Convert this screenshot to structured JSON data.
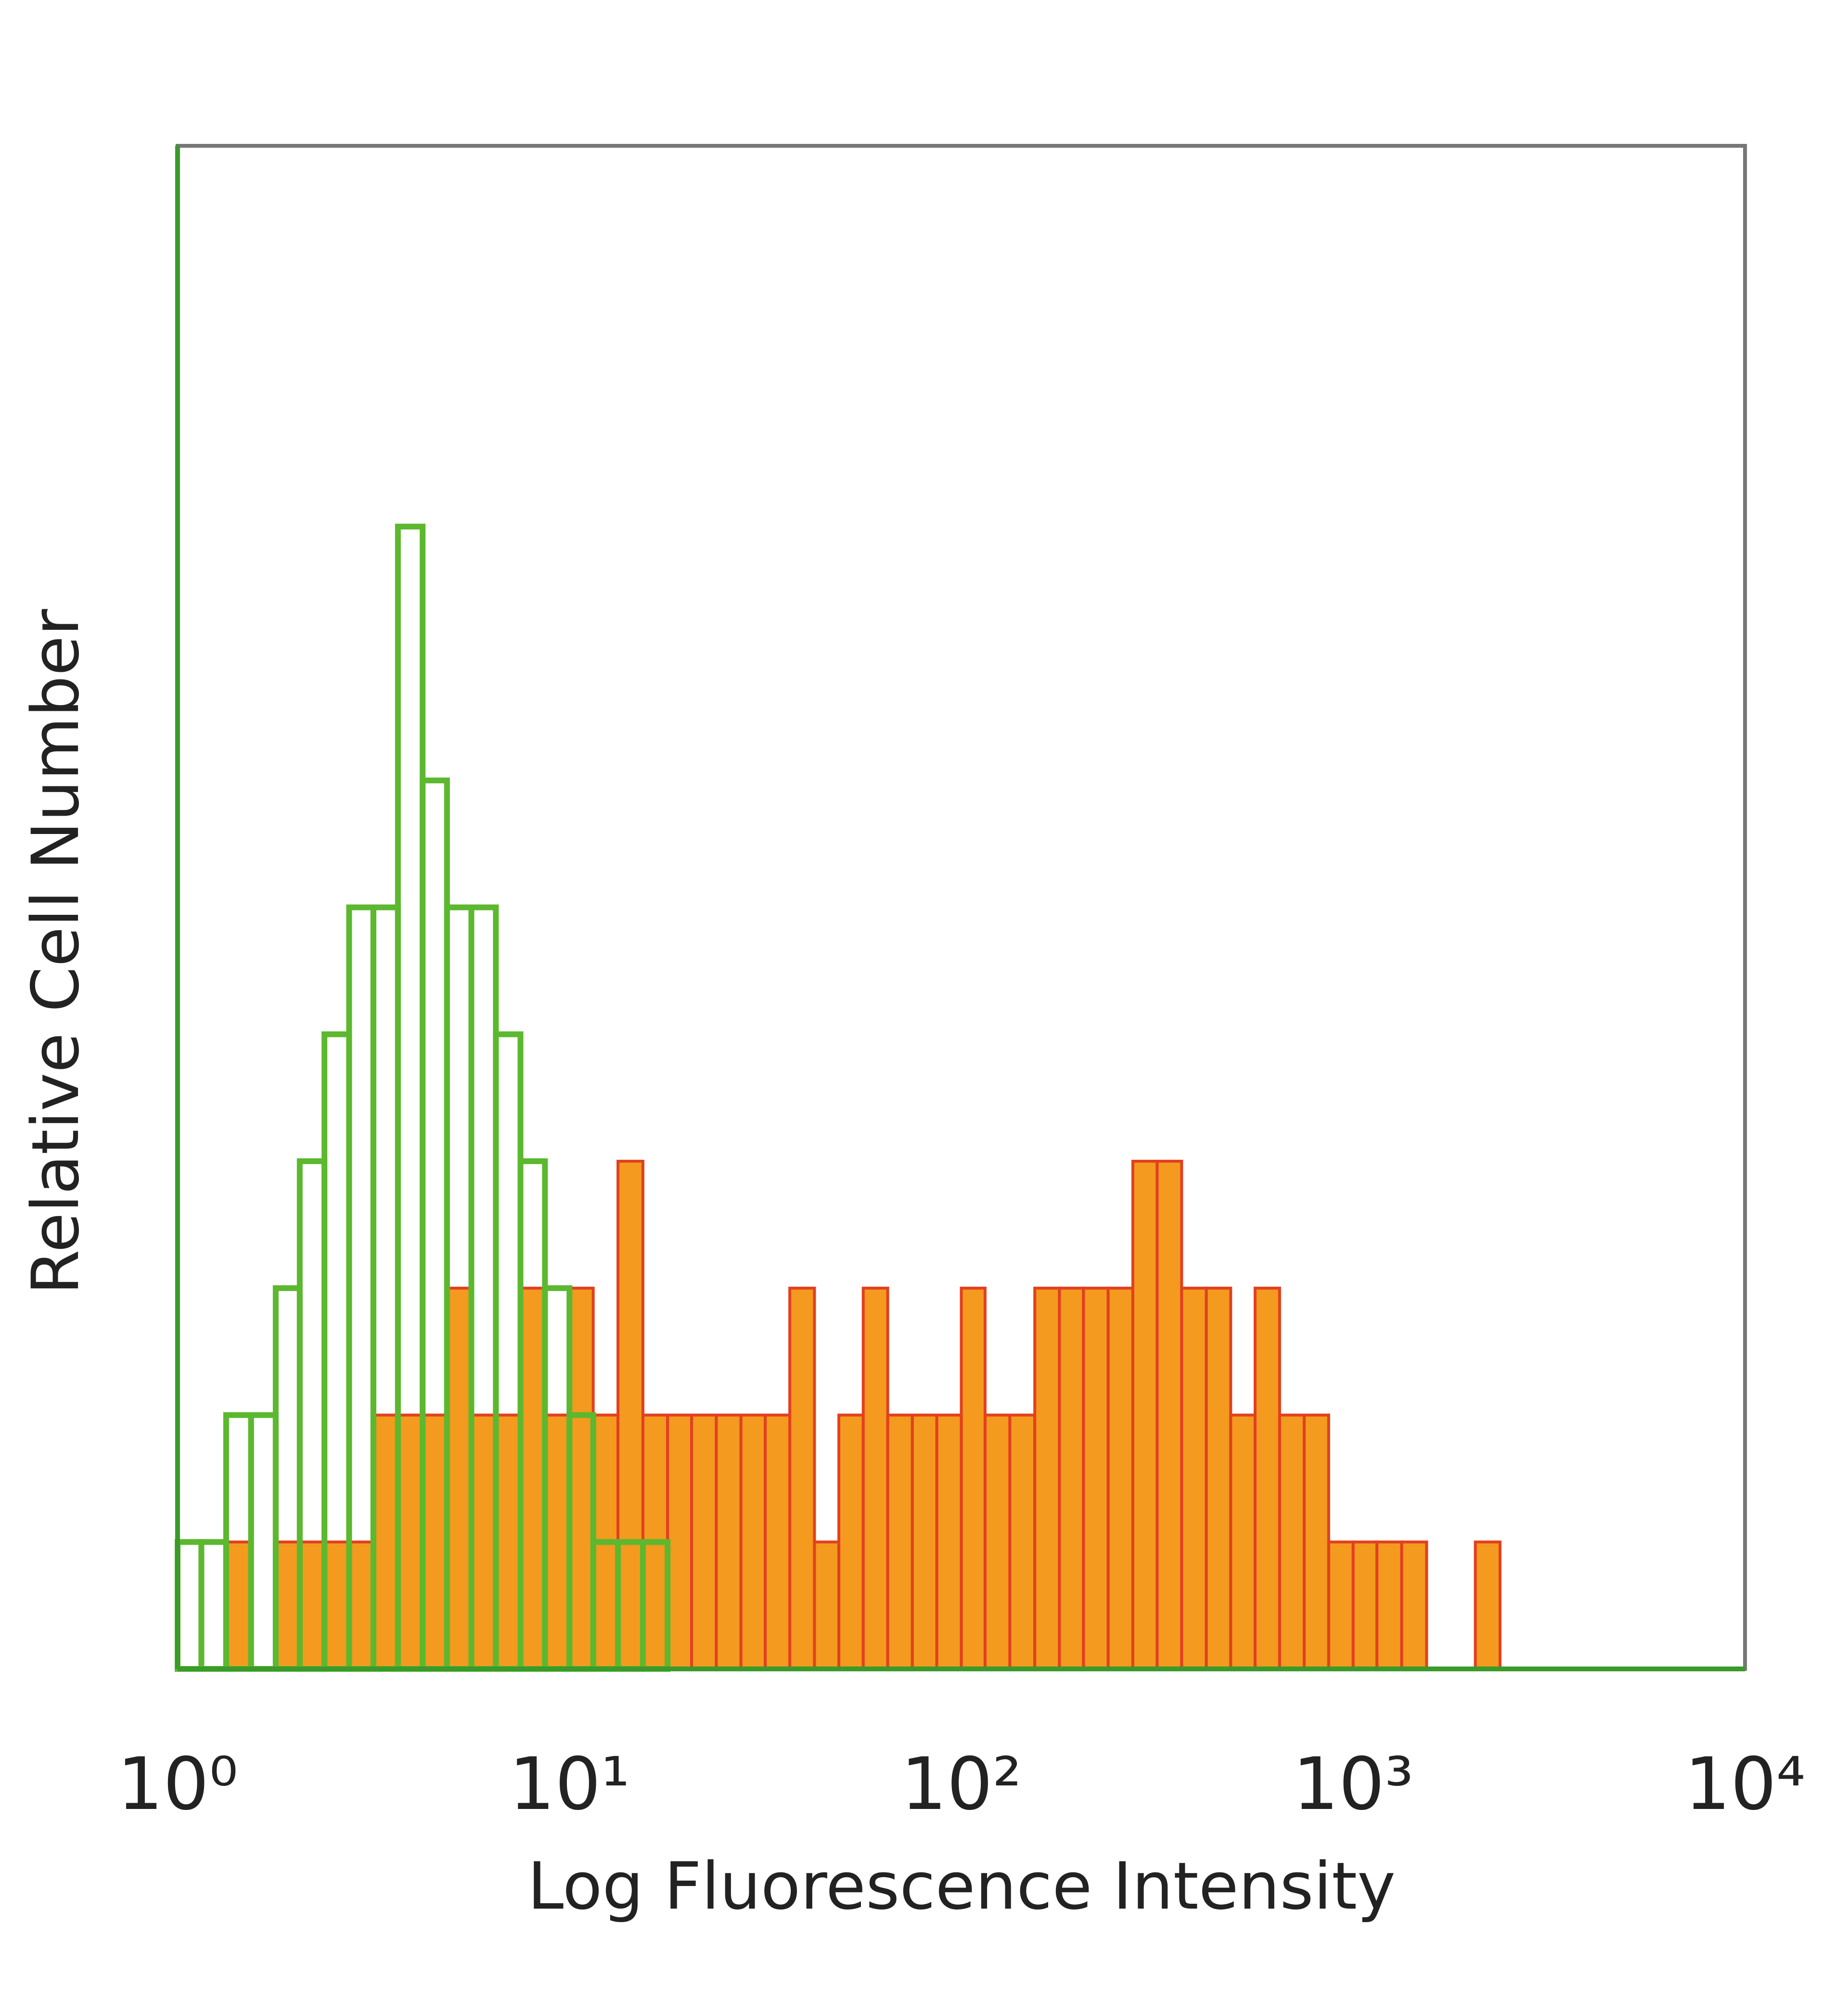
{
  "chart_data": {
    "type": "histogram",
    "xlabel": "Log Fluorescence Intensity",
    "ylabel": "Relative Cell Number",
    "xscale": "log",
    "xlim": [
      1,
      10000
    ],
    "ylim": [
      0,
      12
    ],
    "xticks": [
      {
        "value": 1,
        "label": "10⁰"
      },
      {
        "value": 10,
        "label": "10¹"
      },
      {
        "value": 100,
        "label": "10²"
      },
      {
        "value": 1000,
        "label": "10³"
      },
      {
        "value": 10000,
        "label": "10⁴"
      }
    ],
    "bins": [
      1,
      1.15,
      1.33,
      1.54,
      1.78,
      2.05,
      2.37,
      2.74,
      3.16,
      3.65,
      4.22,
      4.87,
      5.62,
      6.49,
      7.5,
      8.66,
      10,
      11.5,
      13.3,
      15.4,
      17.8,
      20.5,
      23.7,
      27.4,
      31.6,
      36.5,
      42.2,
      48.7,
      56.2,
      64.9,
      75,
      86.6,
      100,
      115,
      133,
      154,
      178,
      205,
      237,
      274,
      316,
      365,
      422,
      487,
      562,
      649,
      750,
      866,
      1000,
      1150,
      1330,
      1540,
      1780,
      2050,
      2370,
      2740,
      3160,
      3650,
      4220,
      4870,
      5620,
      6490,
      7500,
      8660,
      10000
    ],
    "series": [
      {
        "color": "#f39a1f",
        "edgecolor": "#e2401f",
        "histtype": "bar",
        "values": [
          0,
          0,
          1,
          0,
          1,
          1,
          1,
          1,
          2,
          2,
          2,
          3,
          2,
          2,
          3,
          2,
          3,
          2,
          4,
          2,
          2,
          2,
          2,
          2,
          2,
          3,
          1,
          2,
          3,
          2,
          2,
          2,
          3,
          2,
          2,
          3,
          3,
          3,
          3,
          4,
          4,
          3,
          3,
          2,
          3,
          2,
          2,
          1,
          1,
          1,
          1,
          0,
          0,
          1,
          0,
          0,
          0,
          0,
          0,
          0,
          0,
          0,
          0,
          0
        ]
      },
      {
        "color": "#5cb82e",
        "histtype": "step",
        "values": [
          1,
          1,
          2,
          2,
          3,
          4,
          5,
          6,
          6,
          9,
          7,
          6,
          6,
          5,
          4,
          3,
          2,
          1,
          1,
          1,
          0,
          0,
          0,
          0,
          0,
          0,
          0,
          0,
          0,
          0,
          0,
          0,
          0,
          0,
          0,
          0,
          0,
          0,
          0,
          0,
          0,
          0,
          0,
          0,
          0,
          0,
          0,
          0,
          0,
          0,
          0,
          0,
          0,
          0,
          0,
          0,
          0,
          0,
          0,
          0,
          0,
          0,
          0,
          0
        ]
      }
    ]
  }
}
